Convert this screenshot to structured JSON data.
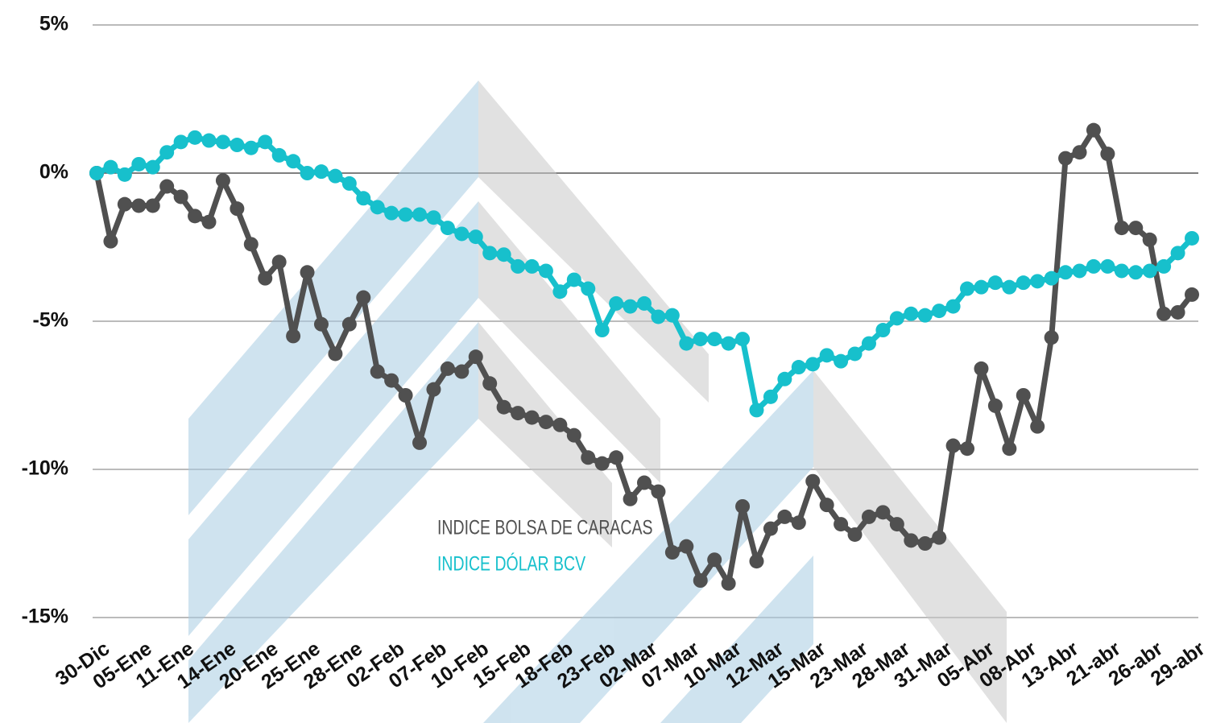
{
  "chart_data": {
    "type": "line",
    "categories": [
      "30-Dic",
      null,
      null,
      "05-Ene",
      null,
      null,
      "11-Ene",
      null,
      null,
      "14-Ene",
      null,
      null,
      "20-Ene",
      null,
      null,
      "25-Ene",
      null,
      null,
      "28-Ene",
      null,
      null,
      "02-Feb",
      null,
      null,
      "07-Feb",
      null,
      null,
      "10-Feb",
      null,
      null,
      "15-Feb",
      null,
      null,
      "18-Feb",
      null,
      null,
      "23-Feb",
      null,
      null,
      "02-Mar",
      null,
      null,
      "07-Mar",
      null,
      null,
      "10-Mar",
      null,
      null,
      "12-Mar",
      null,
      null,
      "15-Mar",
      null,
      null,
      "23-Mar",
      null,
      null,
      "28-Mar",
      null,
      null,
      "31-Mar",
      null,
      null,
      "05-Abr",
      null,
      null,
      "08-Abr",
      null,
      null,
      "13-Abr",
      null,
      null,
      "21-abr",
      null,
      null,
      "26-abr",
      null,
      null,
      "29-abr"
    ],
    "series": [
      {
        "name": "INDICE BOLSA DE CARACAS",
        "color": "#505050",
        "values": [
          0,
          -2.3,
          -1.05,
          -1.1,
          -1.1,
          -0.45,
          -0.8,
          -1.45,
          -1.65,
          -0.25,
          -1.2,
          -2.4,
          -3.55,
          -3.0,
          -5.5,
          -3.35,
          -5.1,
          -6.1,
          -5.1,
          -4.2,
          -6.7,
          -7.0,
          -7.5,
          -9.1,
          -7.3,
          -6.6,
          -6.7,
          -6.2,
          -7.1,
          -7.9,
          -8.1,
          -8.25,
          -8.4,
          -8.5,
          -8.85,
          -9.6,
          -9.8,
          -9.6,
          -11.0,
          -10.45,
          -10.75,
          -12.8,
          -12.6,
          -13.75,
          -13.05,
          -13.85,
          -11.25,
          -13.1,
          -12.0,
          -11.6,
          -11.8,
          -10.4,
          -11.2,
          -11.85,
          -12.2,
          -11.6,
          -11.45,
          -11.85,
          -12.4,
          -12.5,
          -12.3,
          -9.2,
          -9.3,
          -6.6,
          -7.85,
          -9.3,
          -7.5,
          -8.55,
          -5.55,
          0.5,
          0.7,
          1.45,
          0.65,
          -1.85,
          -1.85,
          -2.25,
          -4.75,
          -4.7,
          -4.1
        ]
      },
      {
        "name": "INDICE DÓLAR BCV",
        "color": "#17c0cc",
        "values": [
          0,
          0.2,
          -0.05,
          0.3,
          0.2,
          0.7,
          1.05,
          1.2,
          1.1,
          1.05,
          0.95,
          0.85,
          1.05,
          0.6,
          0.4,
          0,
          0.05,
          -0.1,
          -0.35,
          -0.85,
          -1.15,
          -1.35,
          -1.4,
          -1.4,
          -1.5,
          -1.85,
          -2.05,
          -2.15,
          -2.7,
          -2.75,
          -3.15,
          -3.15,
          -3.3,
          -4.0,
          -3.6,
          -3.9,
          -5.3,
          -4.4,
          -4.5,
          -4.4,
          -4.85,
          -4.8,
          -5.75,
          -5.6,
          -5.6,
          -5.75,
          -5.6,
          -8.0,
          -7.55,
          -6.95,
          -6.55,
          -6.45,
          -6.15,
          -6.35,
          -6.1,
          -5.75,
          -5.3,
          -4.9,
          -4.75,
          -4.8,
          -4.65,
          -4.5,
          -3.9,
          -3.85,
          -3.7,
          -3.85,
          -3.7,
          -3.65,
          -3.55,
          -3.35,
          -3.3,
          -3.15,
          -3.15,
          -3.3,
          -3.35,
          -3.3,
          -3.15,
          -2.7,
          -2.2
        ]
      }
    ],
    "ylim": [
      -15,
      5
    ],
    "yticks": [
      {
        "value": -15,
        "label": "-15%"
      },
      {
        "value": -10,
        "label": "-10%"
      },
      {
        "value": -5,
        "label": "-5%"
      },
      {
        "value": 0,
        "label": "0%"
      },
      {
        "value": 5,
        "label": "5%"
      }
    ],
    "grid": true,
    "legend": "center"
  }
}
